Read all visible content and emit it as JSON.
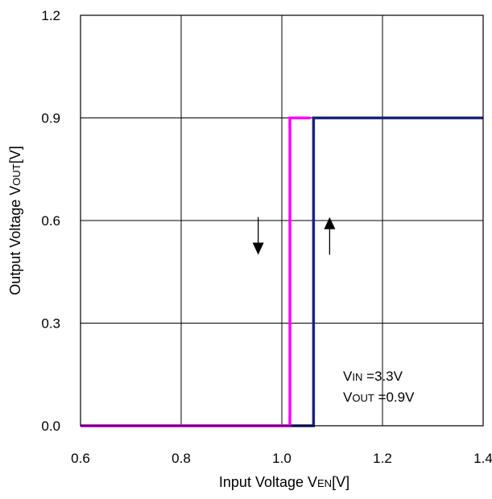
{
  "chart_data": {
    "type": "line",
    "xlabel": {
      "main": "Input Voltage V",
      "sub": "EN",
      "unit": "[V]"
    },
    "ylabel": {
      "main": "Output Voltage V",
      "sub": "OUT",
      "unit": "[V]"
    },
    "xlim": [
      0.6,
      1.4
    ],
    "ylim": [
      0.0,
      1.2
    ],
    "x_ticks": [
      0.6,
      0.8,
      1.0,
      1.2,
      1.4
    ],
    "x_tick_labels": [
      "0.6",
      "0.8",
      "1.0",
      "1.2",
      "1.4"
    ],
    "y_ticks": [
      0.0,
      0.3,
      0.6,
      0.9,
      1.2
    ],
    "y_tick_labels": [
      "0.0",
      "0.3",
      "0.6",
      "0.9",
      "1.2"
    ],
    "grid": true,
    "series": [
      {
        "color": "#1a237e",
        "points": [
          [
            0.6,
            0.0
          ],
          [
            1.063,
            0.0
          ],
          [
            1.063,
            0.9
          ],
          [
            1.4,
            0.9
          ]
        ]
      },
      {
        "color": "#ff00ff",
        "points": [
          [
            0.6,
            0.0
          ],
          [
            1.016,
            0.0
          ],
          [
            1.016,
            0.9
          ],
          [
            1.057,
            0.9
          ]
        ]
      }
    ],
    "annotations": {
      "arrow_down": {
        "x": 0.953,
        "y_from": 0.61,
        "y_to": 0.5,
        "direction": "down"
      },
      "arrow_up": {
        "x": 1.095,
        "y_from": 0.5,
        "y_to": 0.61,
        "direction": "up"
      },
      "conditions": [
        {
          "main": "V",
          "sub": "IN",
          "rest": " =3.3V"
        },
        {
          "main": "V",
          "sub": "OUT",
          "rest": " =0.9V"
        }
      ]
    }
  }
}
